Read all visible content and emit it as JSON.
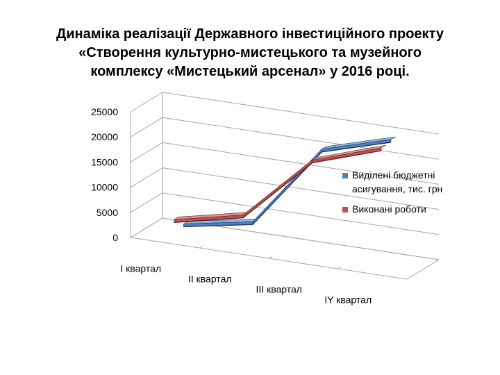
{
  "chart_data": {
    "type": "line",
    "title": [
      "Динаміка реалізації Державного інвестиційного проекту",
      "«Створення культурно-мистецького та музейного",
      "комплексу «Мистецький арсенал» у 2016 році."
    ],
    "categories": [
      "І квартал",
      "ІІ квартал",
      "ІІІ квартал",
      "ІY квартал"
    ],
    "yticks": [
      "0",
      "5000",
      "10000",
      "15000",
      "20000",
      "25000"
    ],
    "ylim": [
      0,
      25000
    ],
    "grid": true,
    "legend_position": "right",
    "series": [
      {
        "name": "Виділені бюджетні асигування, тис. грн",
        "legend_lines": [
          "Виділені бюджетні",
          "асигування, тис. грн"
        ],
        "values": [
          1500,
          4000,
          20500,
          24500
        ],
        "color": "#4f81bd",
        "dark": "#1f3864",
        "light": "#8db3e2"
      },
      {
        "name": "Виконані роботи",
        "legend_lines": [
          "Виконані роботи"
        ],
        "values": [
          3500,
          6500,
          19500,
          24000
        ],
        "color": "#c0504d",
        "dark": "#632423",
        "light": "#d99694"
      }
    ]
  }
}
